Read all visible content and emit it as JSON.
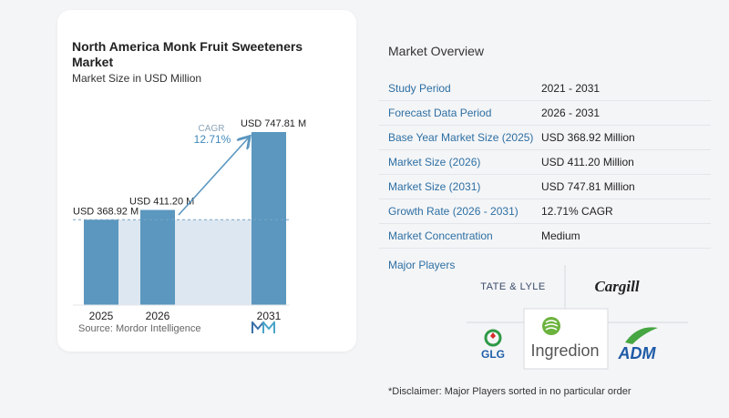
{
  "chart": {
    "title": "North America Monk Fruit Sweeteners Market",
    "subtitle": "Market Size in USD Million",
    "source": "Source:  Mordor Intelligence",
    "cagr_label": "CAGR",
    "cagr_value": "12.71%"
  },
  "chart_data": {
    "type": "bar",
    "categories": [
      "2025",
      "2026",
      "2031"
    ],
    "values": [
      368.92,
      411.2,
      747.81
    ],
    "value_labels": [
      "USD 368.92 M",
      "USD 411.20 M",
      "USD 747.81 M"
    ],
    "ylim": [
      0,
      800
    ],
    "grid": false,
    "colors": {
      "bar": "#5b97bf",
      "band": "#dde7f1",
      "arrow": "#5b97bf",
      "dashed": "#7aa3c5"
    }
  },
  "overview": {
    "title": "Market Overview",
    "rows": [
      {
        "label": "Study Period",
        "value": "2021 - 2031"
      },
      {
        "label": "Forecast Data Period",
        "value": "2026 - 2031"
      },
      {
        "label": "Base Year Market Size (2025)",
        "value": "USD 368.92 Million"
      },
      {
        "label": "Market Size (2026)",
        "value": "USD 411.20 Million"
      },
      {
        "label": "Market Size (2031)",
        "value": "USD 747.81 Million"
      },
      {
        "label": "Growth Rate (2026 - 2031)",
        "value": "12.71% CAGR"
      },
      {
        "label": "Market Concentration",
        "value": "Medium"
      }
    ]
  },
  "players": {
    "title": "Major Players",
    "logos": {
      "tate_lyle": "TATE & LYLE",
      "cargill": "Cargill",
      "glg": "GLG",
      "ingredion": "Ingredion",
      "adm": "ADM"
    }
  },
  "disclaimer": "*Disclaimer: Major Players sorted in no particular order"
}
